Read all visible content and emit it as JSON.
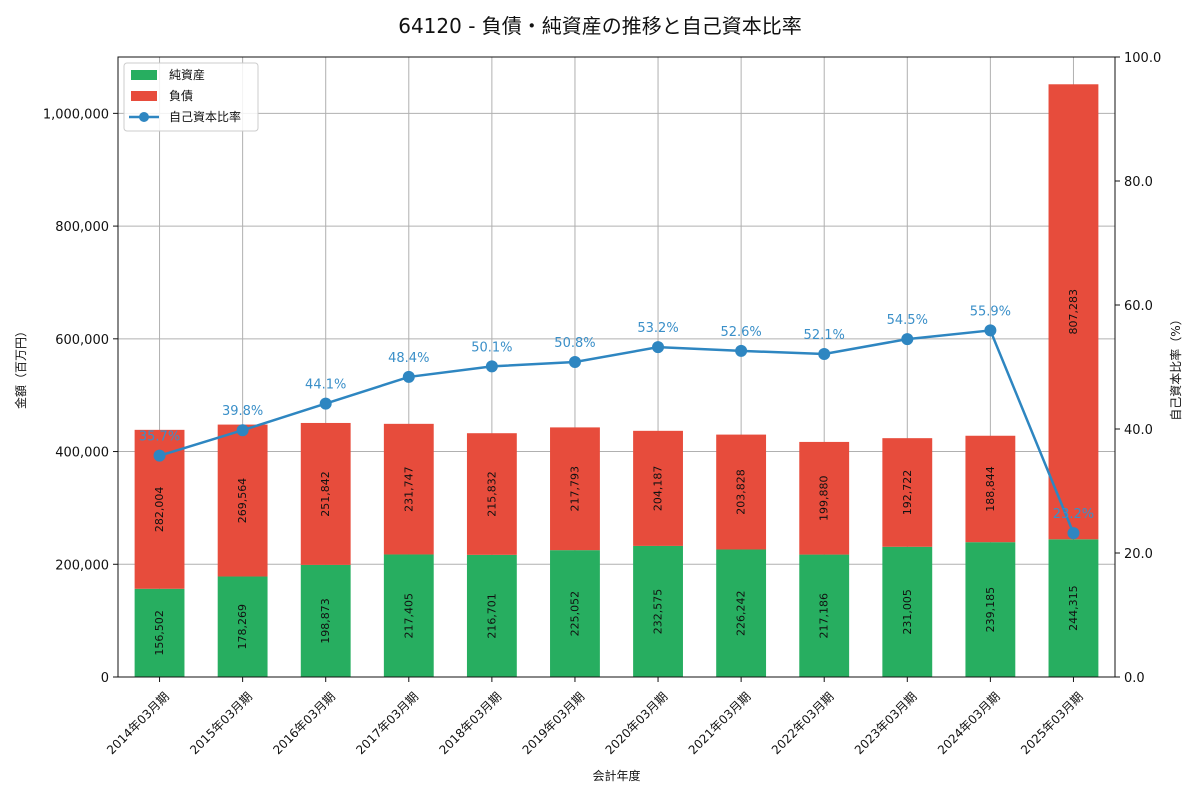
{
  "chart_data": {
    "type": "bar",
    "title": "64120 - 負債・純資産の推移と自己資本比率",
    "xlabel": "会計年度",
    "ylabel": "金額（百万円）",
    "y2label": "自己資本比率（%）",
    "categories": [
      "2014年03月期",
      "2015年03月期",
      "2016年03月期",
      "2017年03月期",
      "2018年03月期",
      "2019年03月期",
      "2020年03月期",
      "2021年03月期",
      "2022年03月期",
      "2023年03月期",
      "2024年03月期",
      "2025年03月期"
    ],
    "series": [
      {
        "name": "純資産",
        "kind": "bar",
        "stack": "a",
        "color": "#27ae60",
        "values": [
          156502,
          178269,
          198873,
          217405,
          216701,
          225052,
          232575,
          226242,
          217186,
          231005,
          239185,
          244315
        ],
        "labels": [
          "156,502",
          "178,269",
          "198,873",
          "217,405",
          "216,701",
          "225,052",
          "232,575",
          "226,242",
          "217,186",
          "231,005",
          "239,185",
          "244,315"
        ]
      },
      {
        "name": "負債",
        "kind": "bar",
        "stack": "a",
        "color": "#e74c3c",
        "values": [
          282004,
          269564,
          251842,
          231747,
          215832,
          217793,
          204187,
          203828,
          199880,
          192722,
          188844,
          807283
        ],
        "labels": [
          "282,004",
          "269,564",
          "251,842",
          "231,747",
          "215,832",
          "217,793",
          "204,187",
          "203,828",
          "199,880",
          "192,722",
          "188,844",
          "807,283"
        ]
      },
      {
        "name": "自己資本比率",
        "kind": "line",
        "axis": "right",
        "color": "#2e86c1",
        "values": [
          35.7,
          39.8,
          44.1,
          48.4,
          50.1,
          50.8,
          53.2,
          52.6,
          52.1,
          54.5,
          55.9,
          23.2
        ],
        "labels": [
          "35.7%",
          "39.8%",
          "44.1%",
          "48.4%",
          "50.1%",
          "50.8%",
          "53.2%",
          "52.6%",
          "52.1%",
          "54.5%",
          "55.9%",
          "23.2%"
        ]
      }
    ],
    "ylim": [
      0,
      1100000
    ],
    "y_ticks": [
      0,
      200000,
      400000,
      600000,
      800000,
      1000000
    ],
    "y_tick_labels": [
      "0",
      "200,000",
      "400,000",
      "600,000",
      "800,000",
      "1,000,000"
    ],
    "y2lim": [
      0,
      100
    ],
    "y2_ticks": [
      0,
      20,
      40,
      60,
      80,
      100
    ],
    "y2_tick_labels": [
      "0.0",
      "20.0",
      "40.0",
      "60.0",
      "80.0",
      "100.0"
    ],
    "grid": true,
    "legend_position": "top-left"
  }
}
